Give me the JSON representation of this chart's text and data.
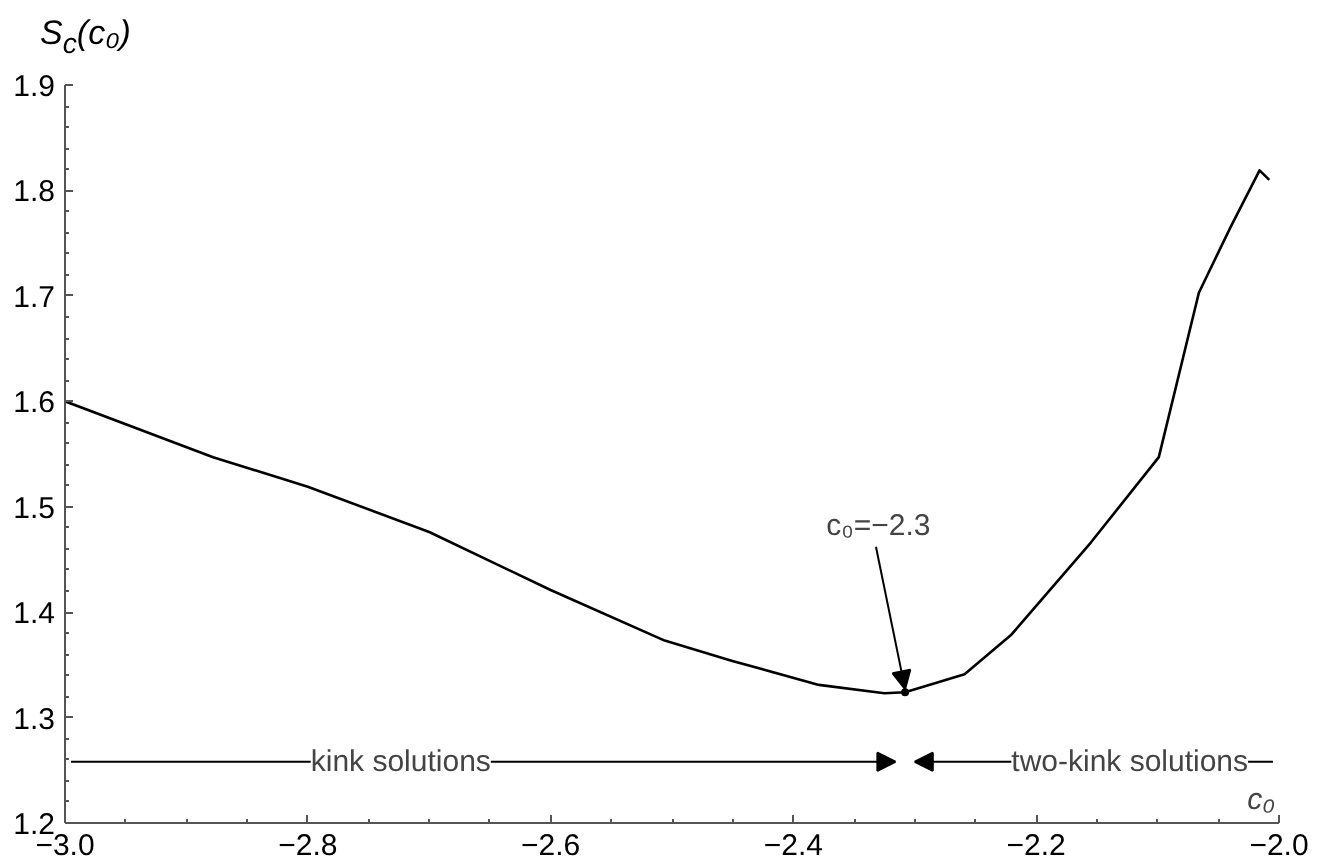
{
  "chart_data": {
    "type": "line",
    "xlabel": "c₀",
    "ylabel": "S$_{c}$(c₀)",
    "xlim": [
      -3.0,
      -2.0
    ],
    "ylim": [
      1.2,
      1.9
    ],
    "xticks": [
      {
        "value": -3.0,
        "label": "−3.0"
      },
      {
        "value": -2.8,
        "label": "−2.8"
      },
      {
        "value": -2.6,
        "label": "−2.6"
      },
      {
        "value": -2.4,
        "label": "−2.4"
      },
      {
        "value": -2.2,
        "label": "−2.2"
      },
      {
        "value": -2.0,
        "label": "−2.0"
      }
    ],
    "yticks": [
      1.2,
      1.3,
      1.4,
      1.5,
      1.6,
      1.7,
      1.8,
      1.9
    ],
    "marker": "none",
    "line_style": "solid",
    "series": [
      {
        "color": "#000000",
        "x": [
          -3.0,
          -2.878,
          -2.8,
          -2.7,
          -2.6,
          -2.506,
          -2.451,
          -2.379,
          -2.325,
          -2.308,
          -2.259,
          -2.221,
          -2.155,
          -2.099,
          -2.066,
          -2.04,
          -2.016,
          -2.008
        ],
        "values": [
          1.6,
          1.547,
          1.519,
          1.476,
          1.421,
          1.373,
          1.354,
          1.331,
          1.323,
          1.324,
          1.341,
          1.378,
          1.466,
          1.547,
          1.703,
          1.765,
          1.819,
          1.81
        ]
      }
    ],
    "annotations": [
      {
        "text": "c₀=−2.3",
        "x": -2.308,
        "y": 1.324
      },
      "kink solutions",
      "two-kink solutions"
    ]
  }
}
